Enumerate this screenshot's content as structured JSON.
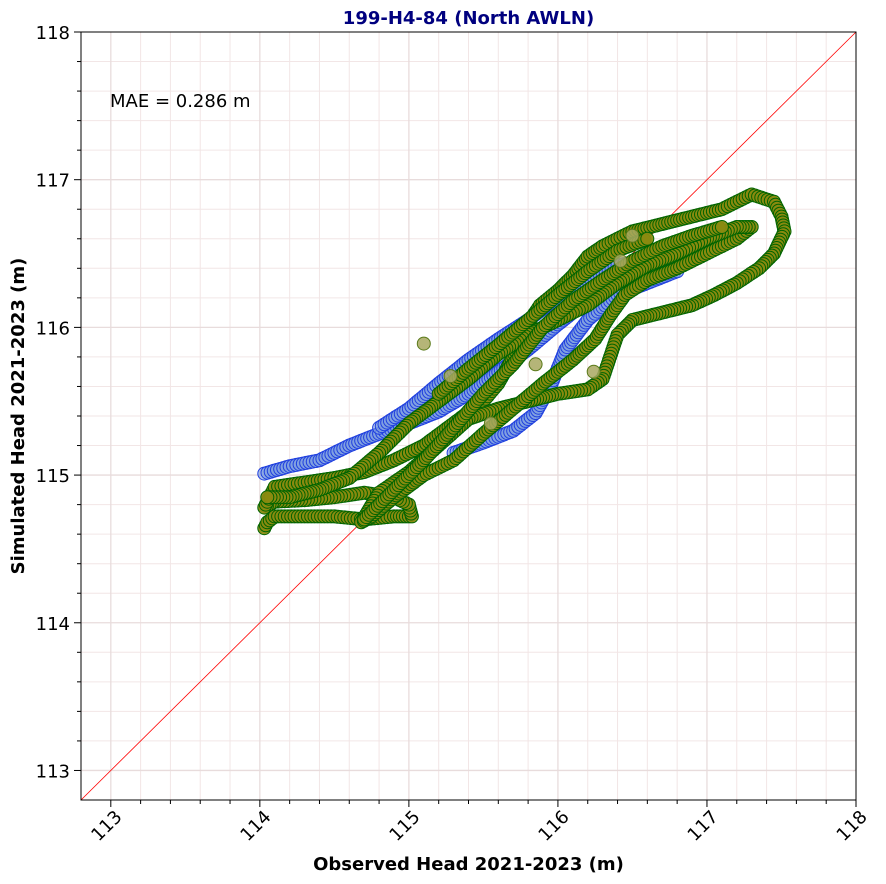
{
  "chart_data": {
    "type": "scatter",
    "title": "199-H4-84 (North AWLN)",
    "xlabel": "Observed Head 2021-2023 (m)",
    "ylabel": "Simulated Head 2021-2023 (m)",
    "xlim": [
      112.8,
      118
    ],
    "ylim": [
      112.8,
      118
    ],
    "xticks": [
      "113",
      "114",
      "115",
      "116",
      "117",
      "118"
    ],
    "yticks": [
      "113",
      "114",
      "115",
      "116",
      "117",
      "118"
    ],
    "grid": true,
    "annotation": "MAE = 0.286 m",
    "reference_line": {
      "type": "1:1",
      "color": "#ff0000"
    },
    "colors": {
      "blue_fill": "#7fa0e0",
      "blue_edge": "#1f3fdf",
      "green_fill": "#8a8a10",
      "green_edge": "#006400",
      "olive_fill": "#a8a860",
      "olive_edge": "#5a7a1a"
    },
    "series": [
      {
        "style": "blue",
        "polylines": [
          [
            [
              114.03,
              115.01
            ],
            [
              114.2,
              115.06
            ],
            [
              114.4,
              115.1
            ],
            [
              114.6,
              115.2
            ],
            [
              114.8,
              115.28
            ],
            [
              115.0,
              115.35
            ],
            [
              115.2,
              115.43
            ],
            [
              115.4,
              115.55
            ],
            [
              115.6,
              115.7
            ],
            [
              115.8,
              115.85
            ],
            [
              116.0,
              116.02
            ],
            [
              116.2,
              116.18
            ],
            [
              116.4,
              116.33
            ],
            [
              116.6,
              116.43
            ],
            [
              116.85,
              116.48
            ]
          ],
          [
            [
              114.8,
              115.32
            ],
            [
              115.0,
              115.45
            ],
            [
              115.2,
              115.62
            ],
            [
              115.4,
              115.78
            ],
            [
              115.6,
              115.92
            ],
            [
              115.8,
              116.05
            ],
            [
              116.0,
              116.2
            ],
            [
              116.2,
              116.32
            ],
            [
              116.4,
              116.42
            ],
            [
              116.55,
              116.45
            ]
          ],
          [
            [
              115.3,
              115.15
            ],
            [
              115.5,
              115.22
            ],
            [
              115.7,
              115.3
            ],
            [
              115.85,
              115.42
            ],
            [
              115.95,
              115.6
            ],
            [
              116.05,
              115.85
            ],
            [
              116.2,
              116.05
            ],
            [
              116.4,
              116.22
            ],
            [
              116.6,
              116.3
            ],
            [
              116.8,
              116.38
            ]
          ]
        ]
      },
      {
        "style": "green",
        "polylines": [
          [
            [
              114.03,
              114.64
            ],
            [
              114.05,
              114.68
            ],
            [
              114.1,
              114.72
            ],
            [
              114.3,
              114.72
            ],
            [
              114.5,
              114.72
            ],
            [
              114.7,
              114.7
            ],
            [
              114.9,
              114.72
            ],
            [
              115.02,
              114.72
            ],
            [
              115.0,
              114.8
            ],
            [
              114.9,
              114.85
            ],
            [
              114.7,
              114.88
            ],
            [
              114.5,
              114.85
            ],
            [
              114.3,
              114.83
            ],
            [
              114.1,
              114.82
            ],
            [
              114.03,
              114.78
            ],
            [
              114.1,
              114.92
            ],
            [
              114.3,
              114.95
            ],
            [
              114.5,
              114.98
            ],
            [
              114.7,
              115.02
            ],
            [
              114.9,
              115.1
            ],
            [
              115.1,
              115.2
            ],
            [
              115.3,
              115.35
            ],
            [
              115.5,
              115.5
            ],
            [
              115.6,
              115.62
            ],
            [
              115.7,
              115.8
            ],
            [
              115.78,
              116.0
            ],
            [
              115.88,
              116.15
            ],
            [
              116.0,
              116.25
            ],
            [
              116.1,
              116.35
            ],
            [
              116.2,
              116.48
            ],
            [
              116.3,
              116.55
            ],
            [
              116.5,
              116.65
            ],
            [
              116.7,
              116.7
            ],
            [
              116.9,
              116.75
            ],
            [
              117.1,
              116.8
            ],
            [
              117.3,
              116.9
            ],
            [
              117.45,
              116.85
            ],
            [
              117.5,
              116.75
            ],
            [
              117.52,
              116.65
            ],
            [
              117.45,
              116.5
            ],
            [
              117.35,
              116.4
            ],
            [
              117.2,
              116.3
            ],
            [
              117.05,
              116.22
            ],
            [
              116.9,
              116.15
            ],
            [
              116.7,
              116.1
            ],
            [
              116.5,
              116.05
            ],
            [
              116.4,
              115.95
            ],
            [
              116.35,
              115.8
            ],
            [
              116.3,
              115.65
            ],
            [
              116.2,
              115.58
            ],
            [
              116.0,
              115.55
            ],
            [
              115.8,
              115.5
            ],
            [
              115.6,
              115.45
            ],
            [
              115.4,
              115.38
            ],
            [
              115.2,
              115.2
            ],
            [
              115.0,
              115.02
            ],
            [
              114.8,
              114.88
            ],
            [
              114.68,
              114.68
            ],
            [
              114.75,
              114.72
            ],
            [
              114.9,
              114.85
            ],
            [
              115.1,
              115.0
            ],
            [
              115.3,
              115.1
            ],
            [
              115.5,
              115.28
            ],
            [
              115.7,
              115.45
            ],
            [
              115.9,
              115.62
            ],
            [
              116.1,
              115.78
            ],
            [
              116.25,
              115.92
            ],
            [
              116.35,
              116.08
            ],
            [
              116.45,
              116.22
            ],
            [
              116.6,
              116.32
            ],
            [
              116.8,
              116.4
            ],
            [
              117.0,
              116.5
            ],
            [
              117.2,
              116.6
            ],
            [
              117.3,
              116.68
            ],
            [
              117.2,
              116.68
            ],
            [
              117.0,
              116.6
            ],
            [
              116.8,
              116.5
            ],
            [
              116.6,
              116.42
            ],
            [
              116.4,
              116.3
            ],
            [
              116.2,
              116.15
            ],
            [
              116.0,
              116.05
            ],
            [
              115.8,
              115.95
            ],
            [
              115.6,
              115.82
            ],
            [
              115.4,
              115.65
            ],
            [
              115.2,
              115.5
            ],
            [
              115.0,
              115.35
            ],
            [
              114.8,
              115.15
            ],
            [
              114.6,
              114.98
            ],
            [
              114.4,
              114.9
            ],
            [
              114.2,
              114.85
            ],
            [
              114.05,
              114.85
            ]
          ],
          [
            [
              114.7,
              114.7
            ],
            [
              114.9,
              114.9
            ],
            [
              115.1,
              115.1
            ],
            [
              115.3,
              115.32
            ],
            [
              115.5,
              115.55
            ],
            [
              115.7,
              115.75
            ],
            [
              115.9,
              116.0
            ],
            [
              116.1,
              116.18
            ],
            [
              116.3,
              116.32
            ],
            [
              116.5,
              116.45
            ],
            [
              116.7,
              116.55
            ],
            [
              116.9,
              116.62
            ],
            [
              117.1,
              116.68
            ]
          ],
          [
            [
              115.2,
              115.55
            ],
            [
              115.4,
              115.72
            ],
            [
              115.6,
              115.88
            ],
            [
              115.8,
              116.05
            ],
            [
              116.0,
              116.22
            ],
            [
              116.2,
              116.38
            ],
            [
              116.4,
              116.52
            ],
            [
              116.6,
              116.6
            ]
          ]
        ]
      },
      {
        "style": "olive",
        "points": [
          [
            115.1,
            115.89
          ],
          [
            115.28,
            115.67
          ],
          [
            116.42,
            116.45
          ],
          [
            116.24,
            115.7
          ],
          [
            115.55,
            115.35
          ],
          [
            115.85,
            115.75
          ],
          [
            116.5,
            116.62
          ]
        ]
      }
    ]
  }
}
